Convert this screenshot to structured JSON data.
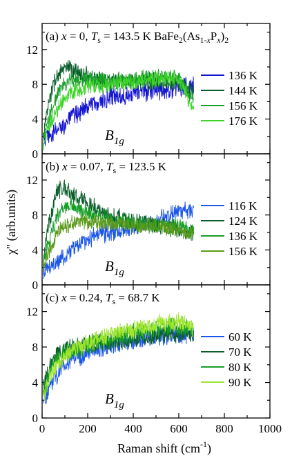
{
  "figure": {
    "ylabel": "χ\" (arb.units)",
    "xlabel_text": "Raman shift (cm",
    "xlabel_sup": "-1",
    "xlabel_close": ")"
  },
  "chart_data": [
    {
      "type": "line",
      "panel": "(a)",
      "title_parts": {
        "prefix": "(a) ",
        "x_var": "x",
        "x_eq": " = 0, ",
        "t_var": "T",
        "t_sub": "s",
        "t_eq": " = 143.5 K BaFe",
        "f_sub1": "2",
        "f_mid": "(As",
        "f_sub2": "1-",
        "f_sub2b": "x",
        "f_p": "P",
        "f_sub3": "x",
        "f_close": ")",
        "f_sub4": "2"
      },
      "symmetry": {
        "main": "B",
        "sub": "1g"
      },
      "xlim": [
        0,
        1000
      ],
      "ylim": [
        0,
        15
      ],
      "x_ticks": [
        0,
        200,
        400,
        600,
        800,
        1000
      ],
      "y_ticks": [
        0,
        4,
        8,
        12
      ],
      "x_range": [
        5,
        665
      ],
      "legend_position": "right",
      "series": [
        {
          "name": "136 K",
          "color": "#1414d2",
          "noise": 1.0,
          "curve": [
            [
              5,
              1.6
            ],
            [
              60,
              2.5
            ],
            [
              120,
              4.0
            ],
            [
              180,
              5.2
            ],
            [
              250,
              6.0
            ],
            [
              320,
              6.6
            ],
            [
              400,
              7.0
            ],
            [
              480,
              7.3
            ],
            [
              560,
              7.5
            ],
            [
              620,
              7.7
            ],
            [
              665,
              7.8
            ]
          ]
        },
        {
          "name": "144 K",
          "color": "#0b5e2c",
          "noise": 0.9,
          "curve": [
            [
              5,
              2.0
            ],
            [
              30,
              6.0
            ],
            [
              60,
              8.8
            ],
            [
              100,
              9.8
            ],
            [
              150,
              9.5
            ],
            [
              220,
              8.7
            ],
            [
              300,
              8.3
            ],
            [
              400,
              8.3
            ],
            [
              500,
              8.4
            ],
            [
              600,
              8.2
            ],
            [
              665,
              7.0
            ]
          ]
        },
        {
          "name": "156 K",
          "color": "#169e26",
          "noise": 0.8,
          "curve": [
            [
              5,
              1.5
            ],
            [
              40,
              5.0
            ],
            [
              80,
              7.5
            ],
            [
              130,
              8.6
            ],
            [
              200,
              8.6
            ],
            [
              300,
              8.4
            ],
            [
              400,
              8.5
            ],
            [
              500,
              8.8
            ],
            [
              600,
              8.8
            ],
            [
              665,
              6.0
            ]
          ]
        },
        {
          "name": "176 K",
          "color": "#3fd42a",
          "noise": 0.8,
          "curve": [
            [
              5,
              1.0
            ],
            [
              40,
              3.8
            ],
            [
              80,
              5.8
            ],
            [
              130,
              7.0
            ],
            [
              200,
              7.7
            ],
            [
              300,
              8.0
            ],
            [
              400,
              8.3
            ],
            [
              500,
              8.6
            ],
            [
              600,
              8.6
            ],
            [
              665,
              5.0
            ]
          ]
        }
      ]
    },
    {
      "type": "line",
      "panel": "(b)",
      "title_parts": {
        "prefix": "(b) ",
        "x_var": "x",
        "x_eq": " = 0.07, ",
        "t_var": "T",
        "t_sub": "s",
        "t_eq": " = 123.5 K"
      },
      "symmetry": {
        "main": "B",
        "sub": "1g"
      },
      "xlim": [
        0,
        1000
      ],
      "ylim": [
        0,
        15
      ],
      "x_ticks": [
        0,
        200,
        400,
        600,
        800,
        1000
      ],
      "y_ticks": [
        0,
        4,
        8,
        12
      ],
      "x_range": [
        5,
        665
      ],
      "legend_position": "right",
      "series": [
        {
          "name": "116 K",
          "color": "#1d57e8",
          "noise": 0.9,
          "curve": [
            [
              5,
              1.5
            ],
            [
              60,
              2.5
            ],
            [
              120,
              3.8
            ],
            [
              180,
              5.0
            ],
            [
              250,
              5.8
            ],
            [
              320,
              6.2
            ],
            [
              400,
              6.6
            ],
            [
              480,
              7.2
            ],
            [
              560,
              8.0
            ],
            [
              620,
              8.5
            ],
            [
              665,
              8.7
            ]
          ]
        },
        {
          "name": "124 K",
          "color": "#0b5e2c",
          "noise": 0.9,
          "curve": [
            [
              5,
              3.0
            ],
            [
              30,
              7.0
            ],
            [
              60,
              10.5
            ],
            [
              90,
              11.2
            ],
            [
              130,
              10.5
            ],
            [
              200,
              9.3
            ],
            [
              300,
              8.0
            ],
            [
              400,
              7.2
            ],
            [
              500,
              6.8
            ],
            [
              600,
              6.3
            ],
            [
              665,
              6.0
            ]
          ]
        },
        {
          "name": "136 K",
          "color": "#169e26",
          "noise": 0.8,
          "curve": [
            [
              5,
              2.5
            ],
            [
              40,
              6.0
            ],
            [
              80,
              8.6
            ],
            [
              130,
              9.0
            ],
            [
              200,
              8.3
            ],
            [
              300,
              7.5
            ],
            [
              400,
              7.0
            ],
            [
              500,
              6.9
            ],
            [
              600,
              6.7
            ],
            [
              665,
              6.4
            ]
          ]
        },
        {
          "name": "156 K",
          "color": "#5c9a1b",
          "noise": 0.8,
          "curve": [
            [
              5,
              2.0
            ],
            [
              40,
              4.5
            ],
            [
              80,
              6.3
            ],
            [
              130,
              7.1
            ],
            [
              200,
              7.2
            ],
            [
              300,
              7.0
            ],
            [
              400,
              6.8
            ],
            [
              500,
              6.7
            ],
            [
              600,
              6.4
            ],
            [
              665,
              5.8
            ]
          ]
        }
      ]
    },
    {
      "type": "line",
      "panel": "(c)",
      "title_parts": {
        "prefix": "(c) ",
        "x_var": "x",
        "x_eq": " = 0.24, ",
        "t_var": "T",
        "t_sub": "s",
        "t_eq": " = 68.7 K"
      },
      "symmetry": {
        "main": "B",
        "sub": "1g"
      },
      "xlim": [
        0,
        1000
      ],
      "ylim": [
        0,
        15
      ],
      "x_ticks": [
        0,
        200,
        400,
        600,
        800,
        1000
      ],
      "y_ticks": [
        0,
        4,
        8,
        12
      ],
      "x_range": [
        5,
        665
      ],
      "legend_position": "right",
      "series": [
        {
          "name": "60 K",
          "color": "#1d57e8",
          "noise": 1.0,
          "curve": [
            [
              5,
              2.0
            ],
            [
              40,
              4.0
            ],
            [
              90,
              5.8
            ],
            [
              150,
              6.8
            ],
            [
              220,
              7.6
            ],
            [
              300,
              8.2
            ],
            [
              400,
              8.7
            ],
            [
              500,
              9.1
            ],
            [
              600,
              9.4
            ],
            [
              665,
              9.6
            ]
          ]
        },
        {
          "name": "70 K",
          "color": "#0b5e2c",
          "noise": 0.9,
          "curve": [
            [
              5,
              3.5
            ],
            [
              40,
              6.3
            ],
            [
              90,
              7.6
            ],
            [
              150,
              8.1
            ],
            [
              220,
              8.4
            ],
            [
              300,
              8.6
            ],
            [
              400,
              8.9
            ],
            [
              500,
              9.3
            ],
            [
              600,
              9.6
            ],
            [
              665,
              9.2
            ]
          ]
        },
        {
          "name": "80 K",
          "color": "#169e26",
          "noise": 0.9,
          "curve": [
            [
              5,
              3.0
            ],
            [
              40,
              5.6
            ],
            [
              90,
              7.0
            ],
            [
              150,
              7.8
            ],
            [
              220,
              8.4
            ],
            [
              300,
              9.0
            ],
            [
              400,
              9.6
            ],
            [
              500,
              10.1
            ],
            [
              600,
              10.4
            ],
            [
              665,
              9.8
            ]
          ]
        },
        {
          "name": "90 K",
          "color": "#9fe62e",
          "noise": 0.9,
          "curve": [
            [
              5,
              2.5
            ],
            [
              40,
              5.1
            ],
            [
              90,
              6.8
            ],
            [
              150,
              7.8
            ],
            [
              220,
              8.6
            ],
            [
              300,
              9.4
            ],
            [
              400,
              10.0
            ],
            [
              500,
              10.6
            ],
            [
              600,
              10.9
            ],
            [
              665,
              10.2
            ]
          ]
        }
      ]
    }
  ]
}
